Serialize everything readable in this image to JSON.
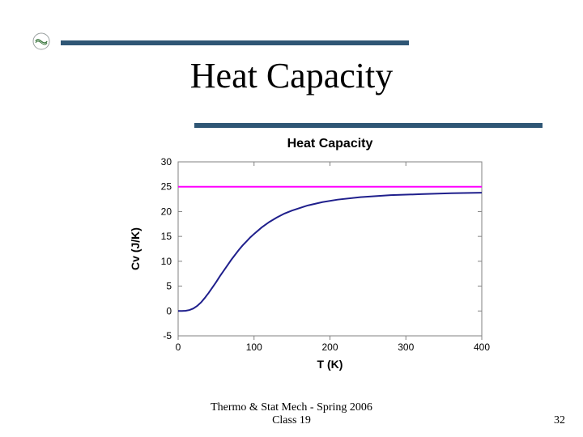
{
  "slide": {
    "title": "Heat Capacity",
    "footer_line1": "Thermo & Stat Mech - Spring 2006",
    "footer_line2": "Class 19",
    "page_number": "32",
    "accent_color": "#2f5675",
    "bullet_colors": {
      "bg": "#ffffff",
      "ring": "#9aa0a0",
      "line": "#3d7740"
    }
  },
  "chart": {
    "type": "line",
    "title": "Heat Capacity",
    "title_fontsize": 16,
    "title_fontweight": "bold",
    "xlabel": "T (K)",
    "ylabel": "Cv (J/K)",
    "label_fontsize": 14,
    "label_fontweight": "bold",
    "tick_fontsize": 12,
    "background_color": "#ffffff",
    "plot_border_color": "#808080",
    "grid": false,
    "xlim": [
      0,
      400
    ],
    "ylim": [
      -5,
      30
    ],
    "xticks": [
      0,
      100,
      200,
      300,
      400
    ],
    "yticks": [
      -5,
      0,
      5,
      10,
      15,
      20,
      25,
      30
    ],
    "hline": {
      "y": 25,
      "color": "#ff00ff",
      "width": 2
    },
    "series": {
      "color": "#1f1f8c",
      "width": 2,
      "x": [
        0,
        5,
        10,
        15,
        20,
        25,
        30,
        35,
        40,
        45,
        50,
        55,
        60,
        65,
        70,
        75,
        80,
        85,
        90,
        95,
        100,
        110,
        120,
        130,
        140,
        150,
        170,
        190,
        210,
        240,
        280,
        320,
        360,
        400
      ],
      "y": [
        0,
        0,
        0.05,
        0.2,
        0.5,
        1.0,
        1.7,
        2.6,
        3.6,
        4.7,
        5.8,
        7.0,
        8.1,
        9.2,
        10.3,
        11.3,
        12.3,
        13.2,
        14.0,
        14.8,
        15.5,
        16.8,
        17.9,
        18.8,
        19.6,
        20.2,
        21.2,
        21.9,
        22.4,
        22.9,
        23.3,
        23.5,
        23.7,
        23.8
      ]
    }
  }
}
